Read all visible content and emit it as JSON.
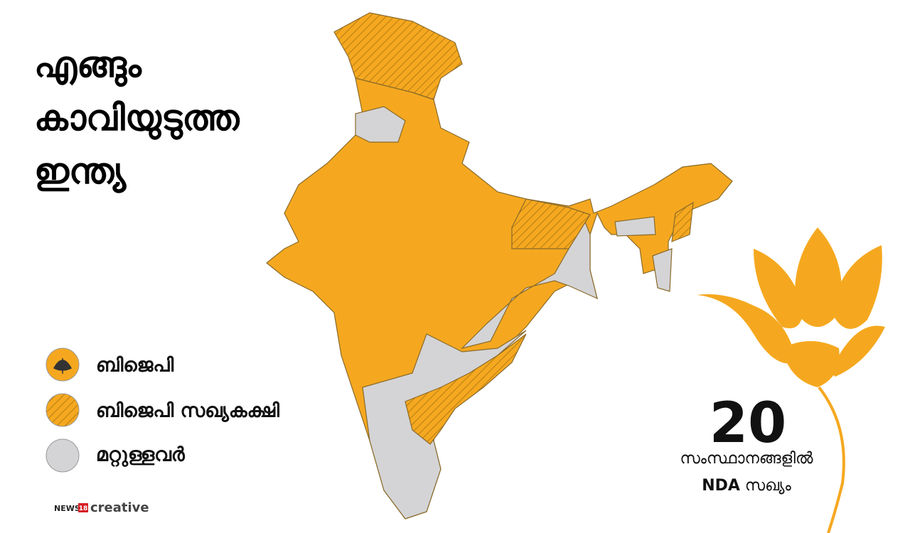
{
  "title": {
    "lines": [
      "എങ്ങും",
      "കാവിയുടുത്ത",
      "ഇന്ത്യ"
    ]
  },
  "legend": {
    "items": [
      "ബിജെപി",
      "ബിജെപി സഖ്യകക്ഷി",
      "മറ്റുള്ളവർ"
    ]
  },
  "stat": {
    "number": 20,
    "line1": "സംസ്ഥാനങ്ങളിൽ",
    "bold": "NDA",
    "rest": "സഖ്യം"
  },
  "brand": {
    "news": "NEWS",
    "number": "18",
    "label": "creative"
  }
}
